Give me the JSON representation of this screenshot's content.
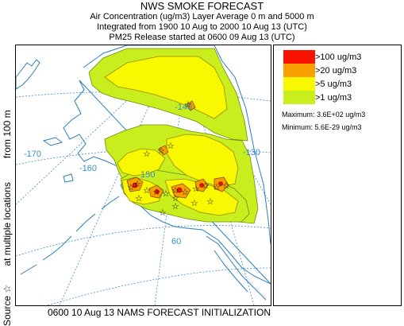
{
  "header": {
    "title": "NWS SMOKE FORECAST",
    "line2": "Air Concentration (ug/m3) Layer Average    0 m and  5000 m",
    "line3": "Integrated from 1900 10 Aug to 2000 10 Aug 13 (UTC)",
    "line4": "PM25 Release started at 0600 09 Aug 13 (UTC)"
  },
  "side_label": {
    "source": "Source",
    "star": "☆",
    "locations": "at multiple locations",
    "height": "from   100 m"
  },
  "map": {
    "labels": {
      "lon_170": "-170",
      "lon_160": "-160",
      "lon_150": "150",
      "lon_140": "-140",
      "lon_130": "-130",
      "lat_60": "60"
    },
    "colors": {
      "ocean_lines": "#3a8fc4",
      "coast": "#2a7fb8",
      "gt1": "#c8ee1e",
      "gt5": "#f8f800",
      "gt20": "#f8a000",
      "gt100": "#f81400"
    }
  },
  "legend": {
    "items": [
      {
        "label": ">100 ug/m3",
        "color": "#f81400"
      },
      {
        "label": ">20 ug/m3",
        "color": "#f8a000"
      },
      {
        "label": ">5 ug/m3",
        "color": "#f8f800"
      },
      {
        "label": ">1 ug/m3",
        "color": "#c8ee1e"
      }
    ],
    "maximum": "Maximum: 3.6E+02 ug/m3",
    "minimum": "Minimum: 5.6E-29 ug/m3"
  },
  "footer": {
    "text": "0600 10 Aug 13 NAMS FORECAST INITIALIZATION"
  }
}
